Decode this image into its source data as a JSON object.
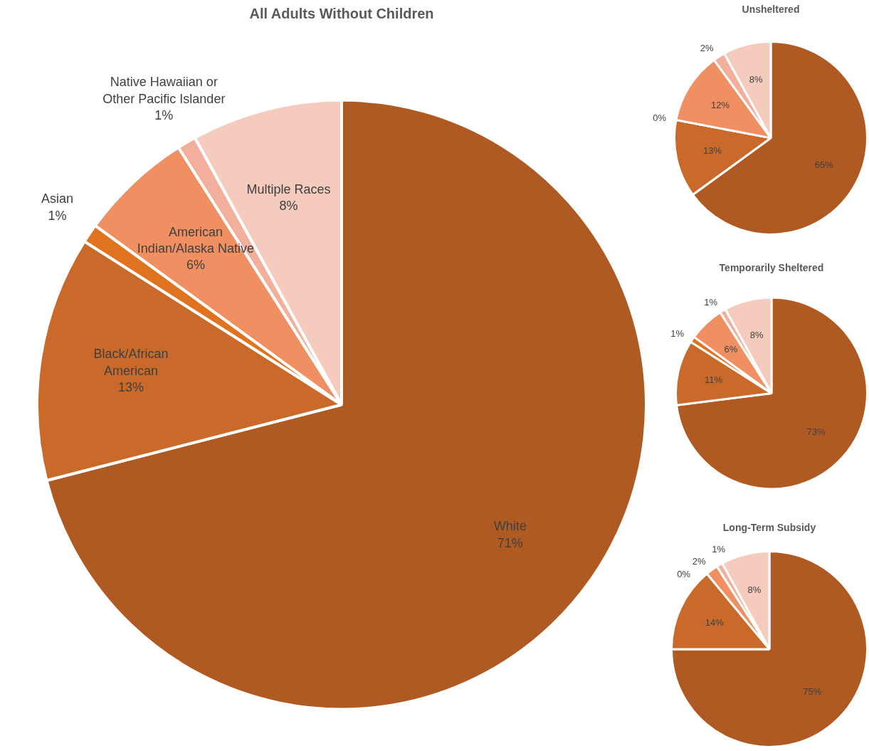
{
  "chart_data": [
    {
      "type": "pie",
      "title": "All Adults Without Children",
      "categories": [
        "White",
        "Black/African American",
        "Asian",
        "American Indian/Alaska Native",
        "Native Hawaiian or Other Pacific Islander",
        "Multiple Races"
      ],
      "values": [
        71,
        13,
        1,
        6,
        1,
        8
      ],
      "value_labels": [
        "71%",
        "13%",
        "1%",
        "6%",
        "1%",
        "8%"
      ],
      "colors": [
        "#af5a22",
        "#c96a2a",
        "#e0731f",
        "#ef8f62",
        "#f2b09c",
        "#f5cbbe"
      ],
      "legend": false
    },
    {
      "type": "pie",
      "title": "Unsheltered",
      "categories": [
        null,
        null,
        null,
        null,
        null,
        null
      ],
      "values": [
        65,
        13,
        0,
        12,
        2,
        8
      ],
      "value_labels": [
        "65%",
        "13%",
        "0%",
        "12%",
        "2%",
        "8%"
      ],
      "colors": [
        "#af5a22",
        "#c96a2a",
        "#e0731f",
        "#ef8f62",
        "#f2b09c",
        "#f5cbbe"
      ],
      "legend": false
    },
    {
      "type": "pie",
      "title": "Temporarily Sheltered",
      "categories": [
        null,
        null,
        null,
        null,
        null,
        null
      ],
      "values": [
        73,
        11,
        1,
        6,
        1,
        8
      ],
      "value_labels": [
        "73%",
        "11%",
        "1%",
        "6%",
        "1%",
        "8%"
      ],
      "colors": [
        "#af5a22",
        "#c96a2a",
        "#e0731f",
        "#ef8f62",
        "#f2b09c",
        "#f5cbbe"
      ],
      "legend": false
    },
    {
      "type": "pie",
      "title": "Long-Term Subsidy",
      "categories": [
        null,
        null,
        null,
        null,
        null,
        null
      ],
      "values": [
        75,
        14,
        0,
        2,
        1,
        8
      ],
      "value_labels": [
        "75%",
        "14%",
        "0%",
        "2%",
        "1%",
        "8%"
      ],
      "colors": [
        "#af5a22",
        "#c96a2a",
        "#e0731f",
        "#ef8f62",
        "#f2b09c",
        "#f5cbbe"
      ],
      "legend": false
    }
  ]
}
